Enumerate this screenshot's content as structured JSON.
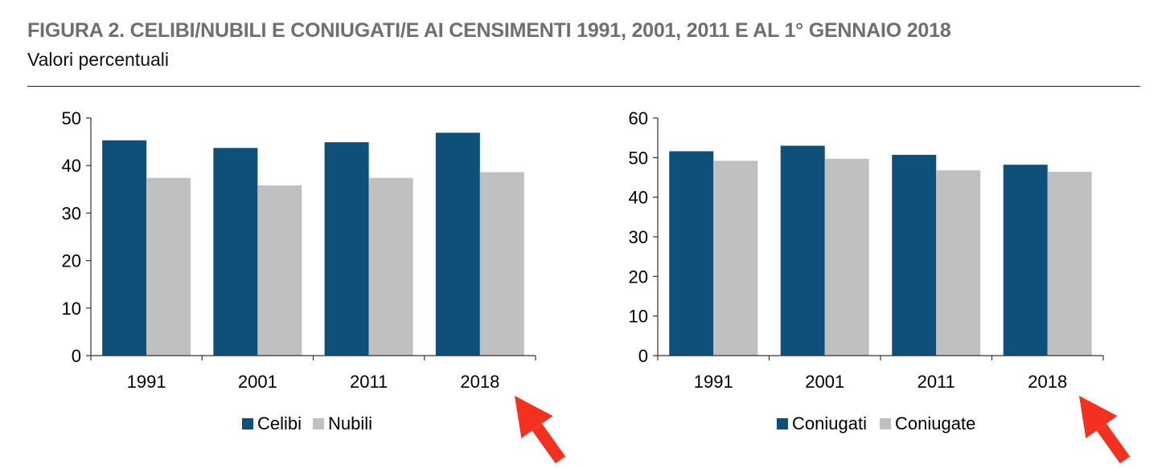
{
  "header": {
    "title": "FIGURA 2. CELIBI/NUBILI E CONIUGATI/E AI CENSIMENTI 1991, 2001, 2011 E AL 1° GENNAIO 2018",
    "subtitle": "Valori percentuali"
  },
  "colors": {
    "dark": "#0e5079",
    "light": "#c0c0c0",
    "arrow": "#f4301f",
    "axis": "#333333"
  },
  "chart_data": [
    {
      "type": "bar",
      "categories": [
        "1991",
        "2001",
        "2011",
        "2018"
      ],
      "series": [
        {
          "name": "Celibi",
          "values": [
            45.3,
            43.7,
            44.9,
            46.9
          ]
        },
        {
          "name": "Nubili",
          "values": [
            37.4,
            35.8,
            37.4,
            38.6
          ]
        }
      ],
      "ylim": [
        0,
        50
      ],
      "yticks": [
        0,
        10,
        20,
        30,
        40,
        50
      ],
      "grid": false,
      "legend": "bottom",
      "annotation": "red arrow pointing to 2018"
    },
    {
      "type": "bar",
      "categories": [
        "1991",
        "2001",
        "2011",
        "2018"
      ],
      "series": [
        {
          "name": "Coniugati",
          "values": [
            51.6,
            53.0,
            50.7,
            48.2
          ]
        },
        {
          "name": "Coniugate",
          "values": [
            49.2,
            49.7,
            46.8,
            46.4
          ]
        }
      ],
      "ylim": [
        0,
        60
      ],
      "yticks": [
        0,
        10,
        20,
        30,
        40,
        50,
        60
      ],
      "grid": false,
      "legend": "bottom",
      "annotation": "red arrow pointing to 2018"
    }
  ]
}
